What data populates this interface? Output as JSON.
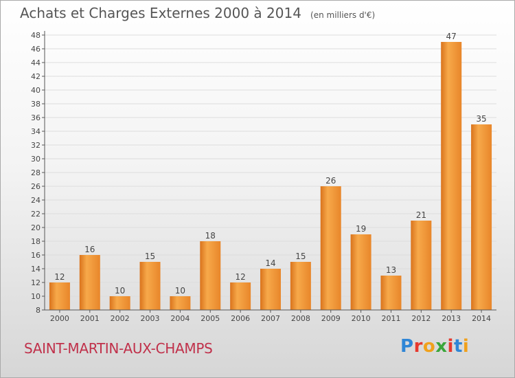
{
  "brand": {
    "text": "Proxiti",
    "letter_colors": [
      "#2f86d6",
      "#e6392e",
      "#f0a11c",
      "#3aa63a",
      "#e6392e",
      "#2f86d6",
      "#f0a11c"
    ]
  },
  "chart_data": {
    "type": "bar",
    "title": "Achats et Charges Externes 2000 à 2014",
    "unit_note": "(en milliers d'€)",
    "xlabel": "",
    "ylabel": "",
    "place_name": "SAINT-MARTIN-AUX-CHAMPS",
    "categories": [
      "2000",
      "2001",
      "2002",
      "2003",
      "2004",
      "2005",
      "2006",
      "2007",
      "2008",
      "2009",
      "2010",
      "2011",
      "2012",
      "2013",
      "2014"
    ],
    "values": [
      12,
      16,
      10,
      15,
      10,
      18,
      12,
      14,
      15,
      26,
      19,
      13,
      21,
      47,
      35
    ],
    "ylim": [
      8,
      48
    ],
    "yticks": [
      8,
      10,
      12,
      14,
      16,
      18,
      20,
      22,
      24,
      26,
      28,
      30,
      32,
      34,
      36,
      38,
      40,
      42,
      44,
      46,
      48
    ],
    "grid": true,
    "legend": "none",
    "bar_color_light": "#f7a94a",
    "bar_color_dark": "#d9731c",
    "title_color": "#555555",
    "place_color": "#c0304a"
  }
}
